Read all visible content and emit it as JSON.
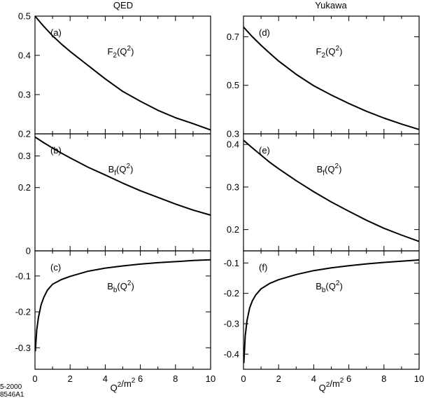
{
  "figure": {
    "columns": [
      {
        "title": "QED",
        "xlabel": "Q²/m²"
      },
      {
        "title": "Yukawa",
        "xlabel": "Q²/m²"
      }
    ],
    "x_tick_labels": [
      "0",
      "2",
      "4",
      "6",
      "8",
      "10"
    ],
    "stamp": [
      "5-2000",
      "8546A1"
    ]
  },
  "chart_data": [
    {
      "type": "line",
      "panel": "(a)",
      "function_label": "F₂(Q²)",
      "xlim": [
        0,
        10
      ],
      "ylim": [
        0.2,
        0.5
      ],
      "yticks": [
        0.2,
        0.3,
        0.4,
        0.5
      ],
      "ytick_labels": [
        "0.2",
        "0.3",
        "0.4",
        "0.5"
      ],
      "series": [
        {
          "x": [
            0,
            0.5,
            1,
            1.5,
            2,
            3,
            4,
            5,
            6,
            7,
            8,
            9,
            10
          ],
          "y": [
            0.5,
            0.474,
            0.45,
            0.429,
            0.41,
            0.375,
            0.34,
            0.308,
            0.283,
            0.26,
            0.241,
            0.226,
            0.21
          ]
        }
      ]
    },
    {
      "type": "line",
      "panel": "(b)",
      "function_label": "B_f(Q²)",
      "xlim": [
        0,
        10
      ],
      "ylim": [
        0,
        0.37
      ],
      "yticks": [
        0,
        0.2,
        0.3
      ],
      "ytick_labels": [
        "0",
        "0.2",
        "0.3"
      ],
      "series": [
        {
          "x": [
            0,
            0.5,
            1,
            1.5,
            2,
            3,
            4,
            5,
            6,
            7,
            8,
            9,
            10
          ],
          "y": [
            0.36,
            0.342,
            0.325,
            0.309,
            0.294,
            0.265,
            0.24,
            0.214,
            0.19,
            0.169,
            0.148,
            0.129,
            0.113
          ]
        }
      ]
    },
    {
      "type": "line",
      "panel": "(c)",
      "function_label": "B_b(Q²)",
      "xlim": [
        0,
        10
      ],
      "ylim": [
        -0.36,
        -0.03
      ],
      "yticks": [
        -0.3,
        -0.2,
        -0.1,
        0
      ],
      "ytick_labels": [
        "-0.3",
        "-0.2",
        "-0.1",
        "0"
      ],
      "series": [
        {
          "x": [
            0.02,
            0.1,
            0.2,
            0.35,
            0.5,
            0.7,
            1,
            1.5,
            2,
            3,
            4,
            5,
            6,
            7,
            8,
            9,
            10
          ],
          "y": [
            -0.31,
            -0.25,
            -0.215,
            -0.18,
            -0.16,
            -0.14,
            -0.123,
            -0.11,
            -0.101,
            -0.087,
            -0.078,
            -0.072,
            -0.067,
            -0.063,
            -0.06,
            -0.057,
            -0.055
          ]
        }
      ]
    },
    {
      "type": "line",
      "panel": "(d)",
      "function_label": "F₂(Q²)",
      "xlim": [
        0,
        10
      ],
      "ylim": [
        0.3,
        0.785
      ],
      "yticks": [
        0.3,
        0.5,
        0.7
      ],
      "ytick_labels": [
        "0.3",
        "0.5",
        "0.7"
      ],
      "series": [
        {
          "x": [
            0,
            0.5,
            1,
            1.5,
            2,
            3,
            4,
            5,
            6,
            7,
            8,
            9,
            10
          ],
          "y": [
            0.74,
            0.7,
            0.665,
            0.632,
            0.6,
            0.545,
            0.498,
            0.46,
            0.425,
            0.393,
            0.365,
            0.34,
            0.318
          ]
        }
      ]
    },
    {
      "type": "line",
      "panel": "(e)",
      "function_label": "B_f(Q²)",
      "xlim": [
        0,
        10
      ],
      "ylim": [
        0.15,
        0.425
      ],
      "yticks": [
        0.2,
        0.3,
        0.4
      ],
      "ytick_labels": [
        "0.2",
        "0.3",
        "0.4"
      ],
      "series": [
        {
          "x": [
            0,
            0.5,
            1,
            1.5,
            2,
            3,
            4,
            5,
            6,
            7,
            8,
            9,
            10
          ],
          "y": [
            0.41,
            0.392,
            0.375,
            0.358,
            0.343,
            0.315,
            0.289,
            0.265,
            0.243,
            0.222,
            0.203,
            0.187,
            0.172
          ]
        }
      ]
    },
    {
      "type": "line",
      "panel": "(f)",
      "function_label": "B_b(Q²)",
      "xlim": [
        0,
        10
      ],
      "ylim": [
        -0.45,
        -0.06
      ],
      "yticks": [
        -0.4,
        -0.3,
        -0.2,
        -0.1
      ],
      "ytick_labels": [
        "-0.4",
        "-0.3",
        "-0.2",
        "-0.1"
      ],
      "series": [
        {
          "x": [
            0.02,
            0.1,
            0.2,
            0.35,
            0.5,
            0.7,
            1,
            1.5,
            2,
            3,
            4,
            5,
            6,
            7,
            8,
            9,
            10
          ],
          "y": [
            -0.43,
            -0.34,
            -0.29,
            -0.248,
            -0.225,
            -0.205,
            -0.185,
            -0.167,
            -0.155,
            -0.138,
            -0.125,
            -0.116,
            -0.109,
            -0.103,
            -0.098,
            -0.094,
            -0.09
          ]
        }
      ]
    }
  ]
}
